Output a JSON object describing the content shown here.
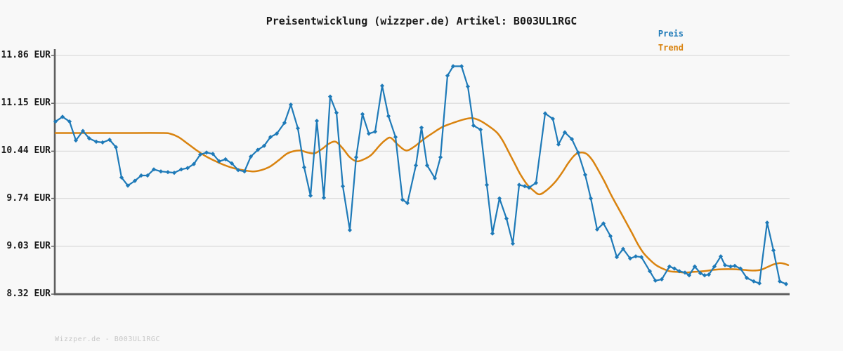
{
  "header": {
    "title": "Preisentwicklung (wizzper.de) Artikel: B003UL1RGC"
  },
  "legend": [
    {
      "label": "Preis",
      "color": "#1e7ab8"
    },
    {
      "label": "Trend",
      "color": "#d9830f"
    }
  ],
  "footer": {
    "text": "Wizzper.de - B003UL1RGC"
  },
  "colors": {
    "background": "#f8f8f8",
    "grid": "#dcdcdc",
    "axis": "#5f5f5f",
    "price_line": "#1e7ab8",
    "trend_line": "#d9830f"
  },
  "chart_data": {
    "type": "line",
    "title": "Preisentwicklung (wizzper.de) Artikel: B003UL1RGC",
    "xlabel": "",
    "ylabel": "",
    "currency": "EUR",
    "ylim": [
      8.32,
      11.86
    ],
    "grid": "horizontal-only",
    "legend_position": "top-right",
    "x_tick_labels": "none",
    "x_units": "px",
    "y_ticks": [
      {
        "label": "11.86 EUR",
        "value": 11.86
      },
      {
        "label": "11.15 EUR",
        "value": 11.15
      },
      {
        "label": "10.44 EUR",
        "value": 10.44
      },
      {
        "label": "9.74 EUR",
        "value": 9.74
      },
      {
        "label": "9.03 EUR",
        "value": 9.03
      },
      {
        "label": "8.32 EUR",
        "value": 8.32
      }
    ],
    "series": [
      {
        "name": "Preis",
        "color": "#1e7ab8",
        "marker": "diamond",
        "smooth": false,
        "points": [
          [
            79,
            10.88
          ],
          [
            89,
            10.95
          ],
          [
            99,
            10.88
          ],
          [
            108,
            10.6
          ],
          [
            118,
            10.74
          ],
          [
            127,
            10.63
          ],
          [
            137,
            10.58
          ],
          [
            146,
            10.57
          ],
          [
            156,
            10.61
          ],
          [
            165,
            10.5
          ],
          [
            173,
            10.05
          ],
          [
            182,
            9.93
          ],
          [
            192,
            10.0
          ],
          [
            201,
            10.08
          ],
          [
            210,
            10.08
          ],
          [
            219,
            10.17
          ],
          [
            229,
            10.14
          ],
          [
            239,
            10.13
          ],
          [
            248,
            10.12
          ],
          [
            258,
            10.17
          ],
          [
            267,
            10.19
          ],
          [
            276,
            10.25
          ],
          [
            285,
            10.39
          ],
          [
            294,
            10.42
          ],
          [
            303,
            10.4
          ],
          [
            312,
            10.29
          ],
          [
            321,
            10.32
          ],
          [
            330,
            10.26
          ],
          [
            339,
            10.16
          ],
          [
            348,
            10.14
          ],
          [
            357,
            10.36
          ],
          [
            367,
            10.46
          ],
          [
            376,
            10.52
          ],
          [
            385,
            10.65
          ],
          [
            394,
            10.7
          ],
          [
            405,
            10.86
          ],
          [
            414,
            11.13
          ],
          [
            424,
            10.78
          ],
          [
            433,
            10.2
          ],
          [
            442,
            9.78
          ],
          [
            451,
            10.89
          ],
          [
            461,
            9.75
          ],
          [
            470,
            11.25
          ],
          [
            479,
            11.01
          ],
          [
            488,
            9.92
          ],
          [
            498,
            9.27
          ],
          [
            507,
            10.35
          ],
          [
            516,
            10.99
          ],
          [
            525,
            10.7
          ],
          [
            534,
            10.73
          ],
          [
            544,
            11.41
          ],
          [
            553,
            10.96
          ],
          [
            563,
            10.65
          ],
          [
            573,
            9.72
          ],
          [
            580,
            9.67
          ],
          [
            592,
            10.23
          ],
          [
            600,
            10.79
          ],
          [
            608,
            10.23
          ],
          [
            619,
            10.04
          ],
          [
            627,
            10.35
          ],
          [
            637,
            11.56
          ],
          [
            645,
            11.7
          ],
          [
            657,
            11.7
          ],
          [
            666,
            11.4
          ],
          [
            674,
            10.82
          ],
          [
            684,
            10.76
          ],
          [
            693,
            9.94
          ],
          [
            701,
            9.22
          ],
          [
            711,
            9.74
          ],
          [
            721,
            9.44
          ],
          [
            730,
            9.07
          ],
          [
            739,
            9.94
          ],
          [
            747,
            9.92
          ],
          [
            753,
            9.9
          ],
          [
            763,
            9.97
          ],
          [
            776,
            11.0
          ],
          [
            787,
            10.92
          ],
          [
            795,
            10.54
          ],
          [
            804,
            10.72
          ],
          [
            814,
            10.62
          ],
          [
            823,
            10.42
          ],
          [
            833,
            10.09
          ],
          [
            841,
            9.74
          ],
          [
            850,
            9.28
          ],
          [
            859,
            9.37
          ],
          [
            869,
            9.18
          ],
          [
            878,
            8.87
          ],
          [
            887,
            8.99
          ],
          [
            897,
            8.85
          ],
          [
            905,
            8.88
          ],
          [
            913,
            8.87
          ],
          [
            925,
            8.66
          ],
          [
            933,
            8.52
          ],
          [
            942,
            8.54
          ],
          [
            953,
            8.73
          ],
          [
            960,
            8.7
          ],
          [
            967,
            8.66
          ],
          [
            975,
            8.64
          ],
          [
            981,
            8.6
          ],
          [
            989,
            8.73
          ],
          [
            997,
            8.63
          ],
          [
            1003,
            8.6
          ],
          [
            1009,
            8.61
          ],
          [
            1017,
            8.73
          ],
          [
            1026,
            8.88
          ],
          [
            1032,
            8.75
          ],
          [
            1040,
            8.73
          ],
          [
            1046,
            8.74
          ],
          [
            1054,
            8.7
          ],
          [
            1063,
            8.56
          ],
          [
            1073,
            8.51
          ],
          [
            1081,
            8.48
          ],
          [
            1092,
            9.38
          ],
          [
            1101,
            8.97
          ],
          [
            1110,
            8.51
          ],
          [
            1119,
            8.47
          ]
        ]
      },
      {
        "name": "Trend",
        "color": "#d9830f",
        "marker": "none",
        "smooth": true,
        "points": [
          [
            79,
            10.71
          ],
          [
            120,
            10.71
          ],
          [
            175,
            10.71
          ],
          [
            230,
            10.71
          ],
          [
            242,
            10.7
          ],
          [
            254,
            10.65
          ],
          [
            266,
            10.56
          ],
          [
            279,
            10.46
          ],
          [
            292,
            10.37
          ],
          [
            305,
            10.3
          ],
          [
            318,
            10.24
          ],
          [
            332,
            10.19
          ],
          [
            346,
            10.16
          ],
          [
            360,
            10.14
          ],
          [
            372,
            10.16
          ],
          [
            384,
            10.21
          ],
          [
            396,
            10.3
          ],
          [
            408,
            10.4
          ],
          [
            418,
            10.44
          ],
          [
            428,
            10.45
          ],
          [
            438,
            10.42
          ],
          [
            448,
            10.41
          ],
          [
            458,
            10.47
          ],
          [
            468,
            10.55
          ],
          [
            478,
            10.58
          ],
          [
            488,
            10.48
          ],
          [
            498,
            10.35
          ],
          [
            508,
            10.29
          ],
          [
            518,
            10.32
          ],
          [
            528,
            10.38
          ],
          [
            540,
            10.52
          ],
          [
            548,
            10.6
          ],
          [
            556,
            10.64
          ],
          [
            566,
            10.54
          ],
          [
            578,
            10.45
          ],
          [
            590,
            10.51
          ],
          [
            602,
            10.61
          ],
          [
            616,
            10.71
          ],
          [
            630,
            10.8
          ],
          [
            645,
            10.86
          ],
          [
            660,
            10.91
          ],
          [
            672,
            10.93
          ],
          [
            684,
            10.89
          ],
          [
            696,
            10.81
          ],
          [
            708,
            10.71
          ],
          [
            716,
            10.59
          ],
          [
            724,
            10.43
          ],
          [
            732,
            10.27
          ],
          [
            740,
            10.11
          ],
          [
            750,
            9.95
          ],
          [
            760,
            9.85
          ],
          [
            768,
            9.8
          ],
          [
            778,
            9.86
          ],
          [
            790,
            9.98
          ],
          [
            800,
            10.12
          ],
          [
            810,
            10.28
          ],
          [
            819,
            10.39
          ],
          [
            827,
            10.42
          ],
          [
            835,
            10.4
          ],
          [
            843,
            10.31
          ],
          [
            851,
            10.17
          ],
          [
            860,
            10.0
          ],
          [
            870,
            9.79
          ],
          [
            880,
            9.6
          ],
          [
            890,
            9.41
          ],
          [
            900,
            9.22
          ],
          [
            908,
            9.06
          ],
          [
            916,
            8.93
          ],
          [
            925,
            8.83
          ],
          [
            934,
            8.75
          ],
          [
            943,
            8.7
          ],
          [
            953,
            8.66
          ],
          [
            963,
            8.65
          ],
          [
            975,
            8.64
          ],
          [
            988,
            8.65
          ],
          [
            1002,
            8.66
          ],
          [
            1016,
            8.68
          ],
          [
            1030,
            8.69
          ],
          [
            1044,
            8.69
          ],
          [
            1058,
            8.68
          ],
          [
            1072,
            8.67
          ],
          [
            1083,
            8.68
          ],
          [
            1092,
            8.72
          ],
          [
            1101,
            8.76
          ],
          [
            1110,
            8.78
          ],
          [
            1117,
            8.77
          ],
          [
            1122,
            8.75
          ]
        ]
      }
    ]
  }
}
